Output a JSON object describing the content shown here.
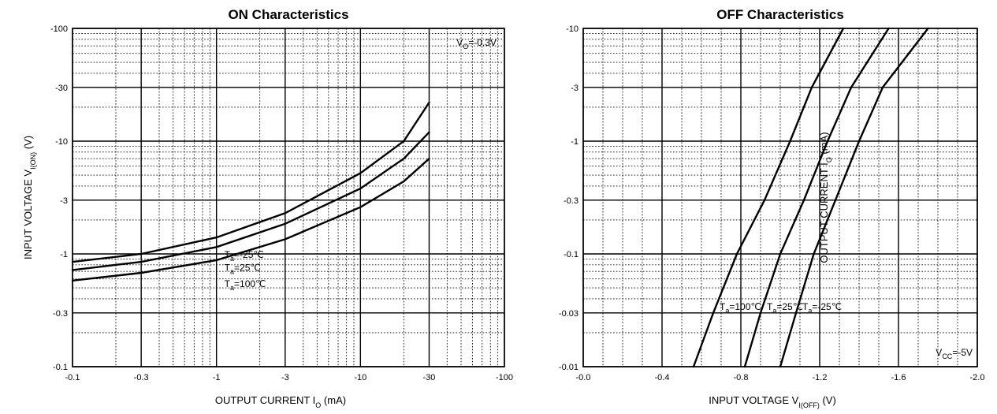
{
  "chart_data": [
    {
      "type": "line",
      "title": "ON Characteristics",
      "xlabel": "OUTPUT CURRENT",
      "xlabel_symbol": "I",
      "xlabel_sub": "O",
      "xlabel_unit": "(mA)",
      "ylabel": "INPUT VOLTAGE",
      "ylabel_symbol": "V",
      "ylabel_sub": "I(ON)",
      "ylabel_unit": "(V)",
      "xscale": "log",
      "yscale": "log",
      "xlim": [
        -0.1,
        -100
      ],
      "ylim": [
        -0.1,
        -100
      ],
      "xticks": [
        "-0.1",
        "-0.3",
        "-1",
        "-3",
        "-10",
        "-30",
        "-100"
      ],
      "xtick_values": [
        -0.1,
        -0.3,
        -1,
        -3,
        -10,
        -30,
        -100
      ],
      "yticks": [
        "-0.1",
        "-0.3",
        "-1",
        "-3",
        "-10",
        "-30",
        "-100"
      ],
      "ytick_values": [
        -0.1,
        -0.3,
        -1,
        -3,
        -10,
        -30,
        -100
      ],
      "condition": "V",
      "condition_sub": "O",
      "condition_value": "=-0.3V",
      "grid": true,
      "series": [
        {
          "name": "T",
          "name_sub": "a",
          "name_value": "=-25℃",
          "x": [
            -0.1,
            -0.3,
            -1,
            -3,
            -10,
            -20,
            -30
          ],
          "y": [
            -0.85,
            -1.0,
            -1.4,
            -2.3,
            -5.2,
            -10,
            -22
          ]
        },
        {
          "name": "T",
          "name_sub": "a",
          "name_value": "=25℃",
          "x": [
            -0.1,
            -0.3,
            -1,
            -3,
            -10,
            -20,
            -30
          ],
          "y": [
            -0.72,
            -0.85,
            -1.15,
            -1.85,
            -3.8,
            -7.0,
            -12
          ]
        },
        {
          "name": "T",
          "name_sub": "a",
          "name_value": "=100℃",
          "x": [
            -0.1,
            -0.3,
            -1,
            -3,
            -10,
            -20,
            -30
          ],
          "y": [
            -0.58,
            -0.68,
            -0.88,
            -1.35,
            -2.6,
            -4.4,
            -7.0
          ]
        }
      ]
    },
    {
      "type": "line",
      "title": "OFF Characteristics",
      "xlabel": "INPUT VOLTAGE",
      "xlabel_symbol": "V",
      "xlabel_sub": "I(OFF)",
      "xlabel_unit": "(V)",
      "ylabel": "OUTPUT CURRENT",
      "ylabel_symbol": "I",
      "ylabel_sub": "O",
      "ylabel_unit": "(mA)",
      "xscale": "linear",
      "yscale": "log",
      "xlim": [
        0,
        -2.0
      ],
      "ylim": [
        -0.01,
        -10
      ],
      "xticks": [
        "-0.0",
        "-0.4",
        "-0.8",
        "-1.2",
        "-1.6",
        "-2.0"
      ],
      "xtick_values": [
        0,
        -0.4,
        -0.8,
        -1.2,
        -1.6,
        -2.0
      ],
      "yticks": [
        "-0.01",
        "-0.03",
        "-0.1",
        "-0.3",
        "-1",
        "-3",
        "-10"
      ],
      "ytick_values": [
        -0.01,
        -0.03,
        -0.1,
        -0.3,
        -1,
        -3,
        -10
      ],
      "condition": "V",
      "condition_sub": "CC",
      "condition_value": "=-5V",
      "grid": true,
      "series": [
        {
          "name": "T",
          "name_sub": "a",
          "name_value": "=100℃",
          "x": [
            -0.56,
            -0.66,
            -0.78,
            -0.92,
            -1.05,
            -1.16,
            -1.32
          ],
          "y": [
            -0.01,
            -0.03,
            -0.1,
            -0.3,
            -1,
            -3,
            -10
          ]
        },
        {
          "name": "T",
          "name_sub": "a",
          "name_value": "=25℃",
          "x": [
            -0.82,
            -0.9,
            -1.0,
            -1.12,
            -1.24,
            -1.36,
            -1.55
          ],
          "y": [
            -0.01,
            -0.03,
            -0.1,
            -0.3,
            -1,
            -3,
            -10
          ]
        },
        {
          "name": "T",
          "name_sub": "a",
          "name_value": "=-25℃",
          "x": [
            -1.0,
            -1.08,
            -1.17,
            -1.28,
            -1.4,
            -1.52,
            -1.75
          ],
          "y": [
            -0.01,
            -0.03,
            -0.1,
            -0.3,
            -1,
            -3,
            -10
          ]
        }
      ]
    }
  ]
}
